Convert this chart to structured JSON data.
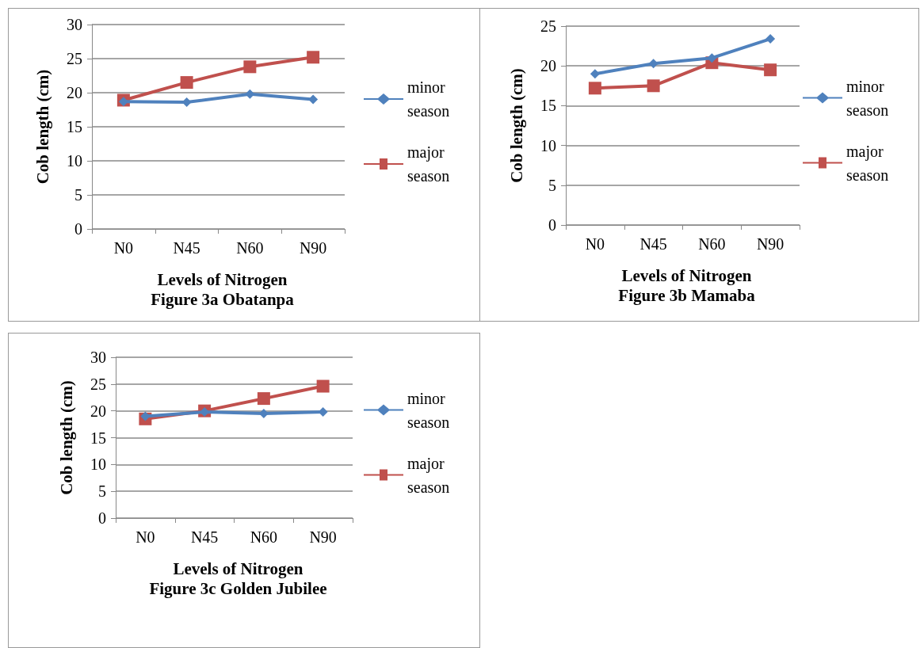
{
  "chart_data": [
    {
      "type": "line",
      "title": "Figure 3a Obatanpa",
      "xlabel": "Levels of Nitrogen",
      "ylabel": "Cob length (cm)",
      "categories": [
        "N0",
        "N45",
        "N60",
        "N90"
      ],
      "series": [
        {
          "name": "minor season",
          "color": "#4f81bd",
          "marker": "diamond",
          "values": [
            18.7,
            18.6,
            19.8,
            19.0
          ]
        },
        {
          "name": "major season",
          "color": "#c0504d",
          "marker": "square",
          "values": [
            18.9,
            21.5,
            23.8,
            25.2
          ]
        }
      ],
      "ylim": [
        0,
        30
      ],
      "yticks": [
        0,
        5,
        10,
        15,
        20,
        25,
        30
      ],
      "grid": "y",
      "legend": "right"
    },
    {
      "type": "line",
      "title": "Figure 3b Mamaba",
      "xlabel": "Levels of Nitrogen",
      "ylabel": "Cob length (cm)",
      "categories": [
        "N0",
        "N45",
        "N60",
        "N90"
      ],
      "series": [
        {
          "name": "minor season",
          "color": "#4f81bd",
          "marker": "diamond",
          "values": [
            19.0,
            20.3,
            21.0,
            23.4
          ]
        },
        {
          "name": "major season",
          "color": "#c0504d",
          "marker": "square",
          "values": [
            17.2,
            17.5,
            20.4,
            19.5
          ]
        }
      ],
      "ylim": [
        0,
        25
      ],
      "yticks": [
        0,
        5,
        10,
        15,
        20,
        25
      ],
      "grid": "y",
      "legend": "right"
    },
    {
      "type": "line",
      "title": "Figure 3c Golden Jubilee",
      "xlabel": "Levels of Nitrogen",
      "ylabel": "Cob length (cm)",
      "categories": [
        "N0",
        "N45",
        "N60",
        "N90"
      ],
      "series": [
        {
          "name": "minor season",
          "color": "#4f81bd",
          "marker": "diamond",
          "values": [
            19.0,
            19.8,
            19.5,
            19.8
          ]
        },
        {
          "name": "major season",
          "color": "#c0504d",
          "marker": "square",
          "values": [
            18.5,
            20.0,
            22.3,
            24.6
          ]
        }
      ],
      "ylim": [
        0,
        30
      ],
      "yticks": [
        0,
        5,
        10,
        15,
        20,
        25,
        30
      ],
      "grid": "y",
      "legend": "right"
    }
  ]
}
